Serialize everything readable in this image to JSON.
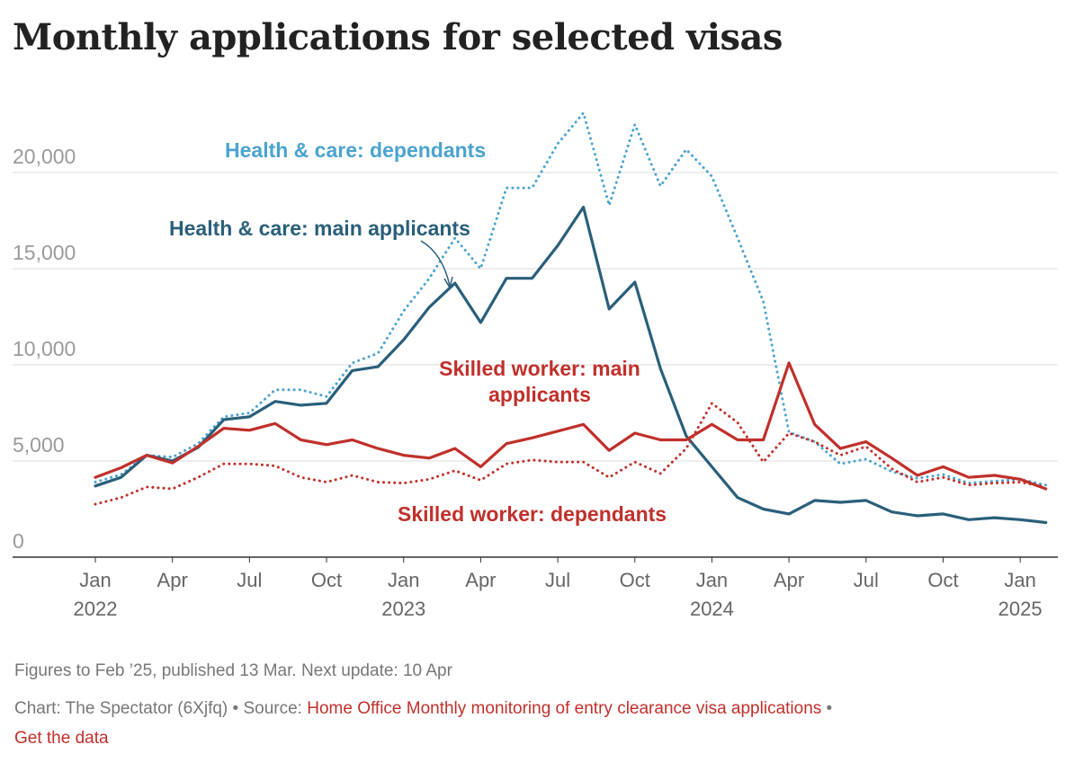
{
  "chart_data": {
    "type": "line",
    "title": "Monthly applications for selected visas",
    "xlabel": "",
    "ylabel": "",
    "ylim": [
      0,
      23500
    ],
    "yticks": [
      0,
      5000,
      10000,
      15000,
      20000
    ],
    "ytick_labels": [
      "0",
      "5,000",
      "10,000",
      "15,000",
      "20,000"
    ],
    "xticks": [
      {
        "index": 0,
        "month": "Jan",
        "year": "2022"
      },
      {
        "index": 3,
        "month": "Apr",
        "year": ""
      },
      {
        "index": 6,
        "month": "Jul",
        "year": ""
      },
      {
        "index": 9,
        "month": "Oct",
        "year": ""
      },
      {
        "index": 12,
        "month": "Jan",
        "year": "2023"
      },
      {
        "index": 15,
        "month": "Apr",
        "year": ""
      },
      {
        "index": 18,
        "month": "Jul",
        "year": ""
      },
      {
        "index": 21,
        "month": "Oct",
        "year": ""
      },
      {
        "index": 24,
        "month": "Jan",
        "year": "2024"
      },
      {
        "index": 27,
        "month": "Apr",
        "year": ""
      },
      {
        "index": 30,
        "month": "Jul",
        "year": ""
      },
      {
        "index": 33,
        "month": "Oct",
        "year": ""
      },
      {
        "index": 36,
        "month": "Jan",
        "year": "2025"
      }
    ],
    "x_range": "Jan 2022 - Feb 2025 (monthly)",
    "grid": true,
    "series": [
      {
        "name": "Health & care: dependants",
        "color": "#4ba3cf",
        "style": "dotted",
        "values": [
          3900,
          4300,
          5300,
          5200,
          5900,
          7300,
          7500,
          8700,
          8700,
          8350,
          10100,
          10600,
          12800,
          14500,
          16600,
          15000,
          19200,
          19200,
          21500,
          23100,
          18300,
          22500,
          19300,
          21200,
          19800,
          16600,
          13300,
          6500,
          6000,
          4850,
          5100,
          4450,
          4100,
          4300,
          3850,
          3950,
          4050,
          3750
        ]
      },
      {
        "name": "Health & care: main applicants",
        "color": "#2a5f7a",
        "style": "solid",
        "values": [
          3700,
          4150,
          5300,
          5000,
          5700,
          7150,
          7300,
          8100,
          7900,
          8000,
          9700,
          9900,
          11300,
          13000,
          14250,
          12200,
          14500,
          14500,
          16200,
          18200,
          12900,
          14300,
          9800,
          6300,
          4700,
          3100,
          2500,
          2250,
          2950,
          2850,
          2950,
          2350,
          2150,
          2250,
          1950,
          2050,
          1950,
          1800
        ]
      },
      {
        "name": "Skilled worker: main applicants",
        "color": "#c0302b",
        "style": "solid",
        "values": [
          4150,
          4650,
          5300,
          4900,
          5750,
          6700,
          6600,
          6950,
          6100,
          5850,
          6100,
          5650,
          5300,
          5150,
          5650,
          4700,
          5900,
          6200,
          6550,
          6900,
          5550,
          6450,
          6100,
          6100,
          6900,
          6100,
          6100,
          10100,
          6900,
          5650,
          6000,
          5150,
          4250,
          4700,
          4150,
          4250,
          4050,
          3550
        ]
      },
      {
        "name": "Skilled worker: dependants",
        "color": "#c0302b",
        "style": "dotted",
        "values": [
          2750,
          3100,
          3650,
          3550,
          4150,
          4850,
          4850,
          4750,
          4150,
          3900,
          4250,
          3900,
          3850,
          4050,
          4500,
          4000,
          4850,
          5050,
          4950,
          4950,
          4150,
          4950,
          4350,
          5650,
          8000,
          7000,
          4950,
          6450,
          6000,
          5300,
          5750,
          4600,
          3900,
          4150,
          3750,
          3850,
          3900,
          3650
        ]
      }
    ],
    "annotations": {
      "hc_dep": "Health & care: dependants",
      "hc_main": "Health & care: main applicants",
      "sw_main_1": "Skilled worker: main",
      "sw_main_2": "applicants",
      "sw_dep": "Skilled worker: dependants"
    }
  },
  "footer": {
    "note": "Figures to Feb ’25, published 13 Mar. Next update: 10 Apr",
    "credit": "Chart: The Spectator (6Xjfq) • Source: ",
    "source_link": "Home Office Monthly monitoring of entry clearance visa applications",
    "sep": " •",
    "get_data": "Get the data"
  }
}
